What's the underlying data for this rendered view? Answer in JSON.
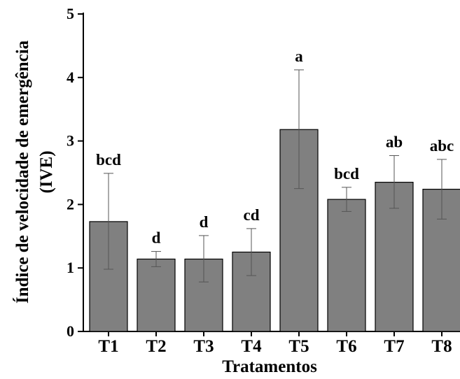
{
  "chart_data": {
    "type": "bar",
    "categories": [
      "T1",
      "T2",
      "T3",
      "T4",
      "T5",
      "T6",
      "T7",
      "T8"
    ],
    "values": [
      1.73,
      1.14,
      1.14,
      1.25,
      3.18,
      2.08,
      2.35,
      2.24
    ],
    "error_low": [
      0.98,
      1.02,
      0.78,
      0.88,
      2.25,
      1.89,
      1.94,
      1.77
    ],
    "error_high": [
      2.49,
      1.26,
      1.51,
      1.62,
      4.12,
      2.27,
      2.77,
      2.71
    ],
    "letters": [
      "bcd",
      "d",
      "d",
      "cd",
      "a",
      "bcd",
      "ab",
      "abc"
    ],
    "title": "",
    "xlabel": "Tratamentos",
    "ylabel_line1": "Índice de velocidade de emergência",
    "ylabel_line2": "(IVE)",
    "ylim": [
      0,
      5
    ],
    "yticks": [
      "0",
      "1",
      "2",
      "3",
      "4",
      "5"
    ],
    "grid": false,
    "bar_color": "#808080"
  }
}
